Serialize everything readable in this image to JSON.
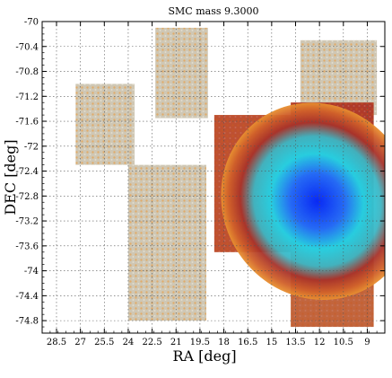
{
  "chart_data": {
    "type": "heatmap",
    "title": "SMC mass  9.3000",
    "xlabel": "RA [deg]",
    "ylabel": "DEC [deg]",
    "xlim": [
      29.4,
      7.9
    ],
    "ylim": [
      -75.0,
      -70.0
    ],
    "x_ticks": [
      "28.5",
      "27",
      "25.5",
      "24",
      "22.5",
      "21",
      "19.5",
      "18",
      "16.5",
      "15",
      "13.5",
      "12",
      "10.5",
      "9"
    ],
    "y_ticks": [
      "-70",
      "-70.4",
      "-70.8",
      "-71.2",
      "-71.6",
      "-72",
      "-72.4",
      "-72.8",
      "-73.2",
      "-73.6",
      "-74",
      "-74.4",
      "-74.8"
    ],
    "grid": true,
    "colormap": [
      "#f2e98a",
      "#f5a623",
      "#a8322a",
      "#20d4e8",
      "#0020ff"
    ],
    "peak": {
      "ra": 11.8,
      "dec": -73.0
    },
    "tiles": [
      {
        "ra": [
          22.3,
          19.0
        ],
        "dec": [
          -70.1,
          -71.55
        ],
        "density": 0.05
      },
      {
        "ra": [
          27.3,
          23.6
        ],
        "dec": [
          -71.0,
          -72.3
        ],
        "density": 0.04
      },
      {
        "ra": [
          13.2,
          8.4
        ],
        "dec": [
          -70.3,
          -71.5
        ],
        "density": 0.12
      },
      {
        "ra": [
          18.6,
          13.4
        ],
        "dec": [
          -71.5,
          -73.7
        ],
        "density": 0.65
      },
      {
        "ra": [
          13.8,
          8.6
        ],
        "dec": [
          -71.3,
          -73.8
        ],
        "density": 0.85
      },
      {
        "ra": [
          24.0,
          19.1
        ],
        "dec": [
          -72.3,
          -74.8
        ],
        "density": 0.12
      },
      {
        "ra": [
          13.8,
          8.6
        ],
        "dec": [
          -73.6,
          -74.9
        ],
        "density": 0.4
      }
    ]
  }
}
